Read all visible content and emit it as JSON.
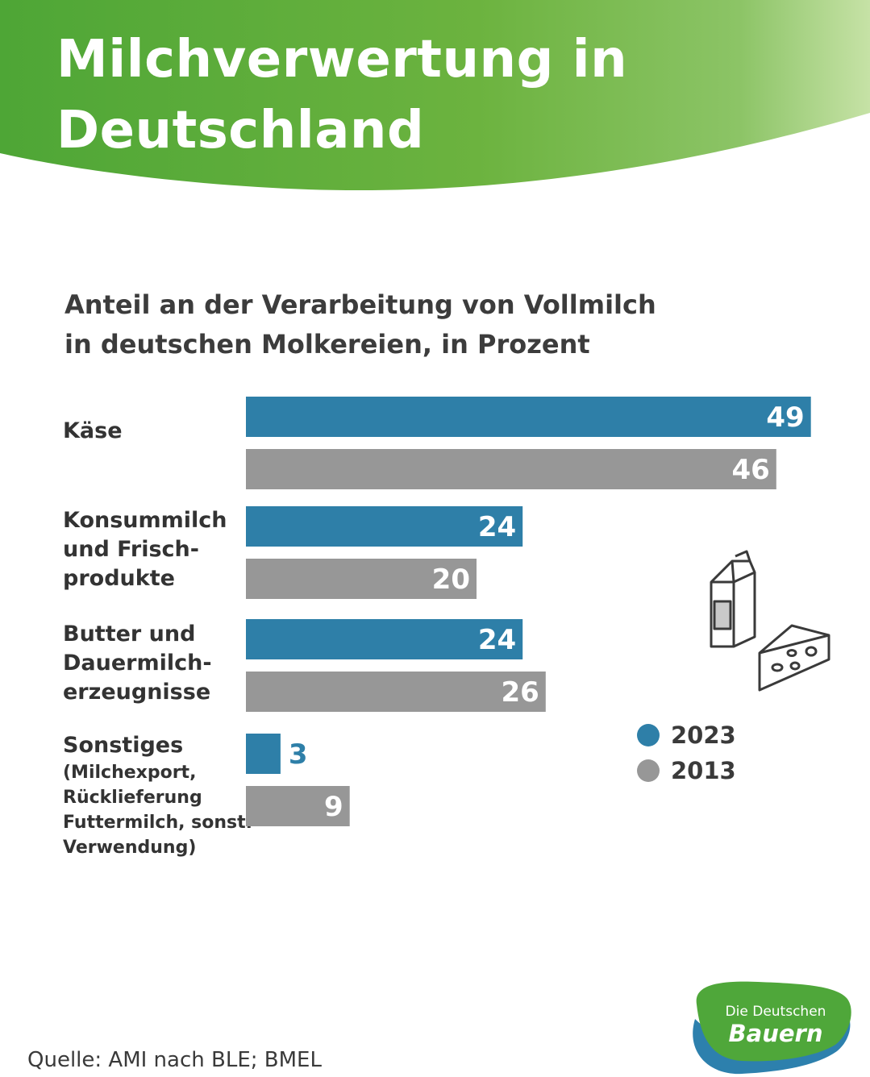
{
  "header": {
    "title_line1": "Milchverwertung in",
    "title_line2": "Deutschland"
  },
  "subtitle_line1": "Anteil an der Verarbeitung von Vollmilch",
  "subtitle_line2": "in deutschen Molkereien, in Prozent",
  "categories": [
    {
      "lines": [
        "Käse"
      ],
      "sub_lines": []
    },
    {
      "lines": [
        "Konsummilch",
        "und Frisch-",
        "produkte"
      ],
      "sub_lines": []
    },
    {
      "lines": [
        "Butter und",
        "Dauermilch-",
        "erzeugnisse"
      ],
      "sub_lines": []
    },
    {
      "lines": [
        "Sonstiges"
      ],
      "sub_lines": [
        "(Milchexport,",
        "Rücklieferung",
        "Futtermilch, sonst.",
        "Verwendung)"
      ]
    }
  ],
  "legend": [
    {
      "label": "2023",
      "color": "#2e7fa8"
    },
    {
      "label": "2013",
      "color": "#979797"
    }
  ],
  "source": "Quelle: AMI nach BLE; BMEL",
  "logo": {
    "line1": "Die Deutschen",
    "line2": "Bauern"
  },
  "icons": [
    "milk-carton-icon",
    "cheese-icon"
  ],
  "chart_data": {
    "type": "bar",
    "orientation": "horizontal",
    "categories": [
      "Käse",
      "Konsummilch und Frischprodukte",
      "Butter und Dauermilcherzeugnisse",
      "Sonstiges (Milchexport, Rücklieferung Futtermilch, sonst. Verwendung)"
    ],
    "series": [
      {
        "name": "2023",
        "color": "#2e7fa8",
        "values": [
          49,
          24,
          24,
          3
        ]
      },
      {
        "name": "2013",
        "color": "#979797",
        "values": [
          46,
          20,
          26,
          9
        ]
      }
    ],
    "data_labels": true,
    "grid": false,
    "legend_position": "right"
  }
}
